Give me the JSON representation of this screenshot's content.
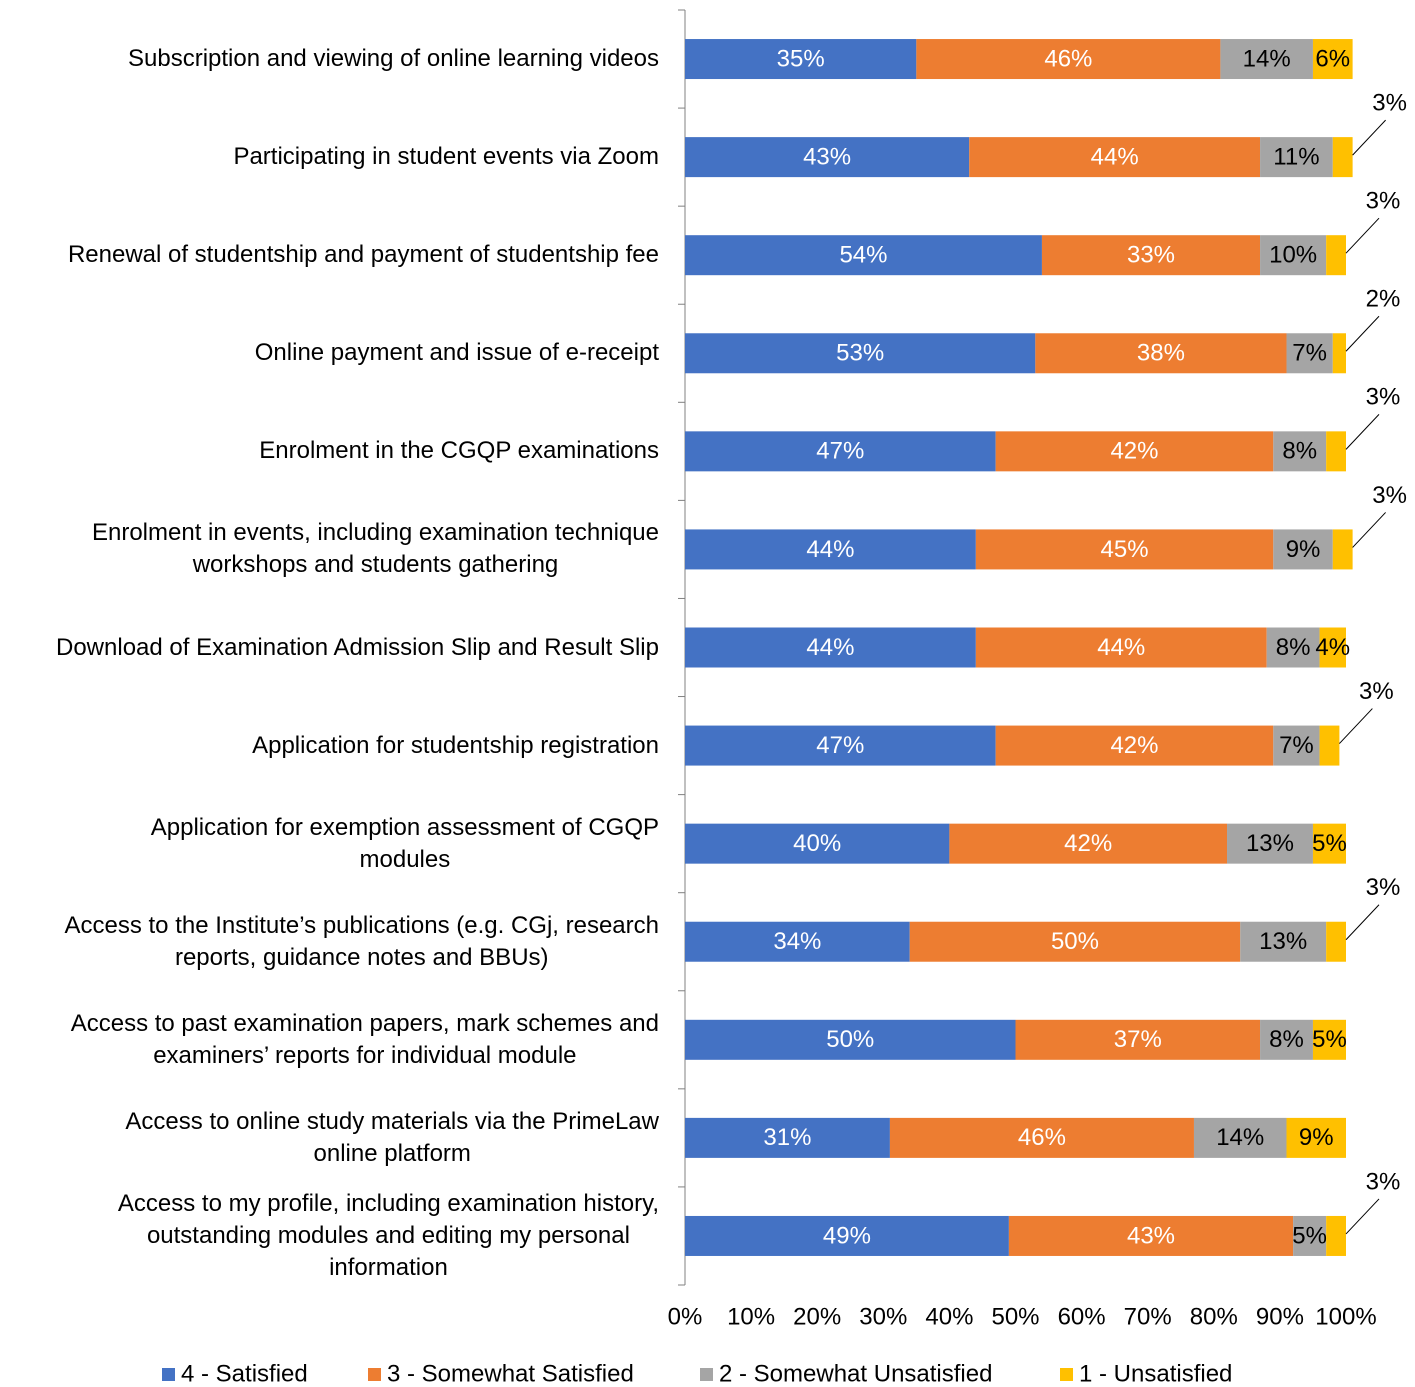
{
  "chart_data": {
    "type": "bar",
    "orientation": "horizontal",
    "stacked": true,
    "categories": [
      "Subscription and viewing of online learning videos",
      "Participating in student events via Zoom",
      "Renewal of studentship and payment of studentship fee",
      "Online payment and issue of e-receipt",
      "Enrolment in the CGQP examinations",
      "Enrolment in events, including examination technique\nworkshops and students gathering",
      "Download of Examination Admission Slip and Result Slip",
      "Application for studentship registration",
      "Application for exemption assessment of CGQP\nmodules",
      "Access to the Institute’s publications (e.g. CGj, research\nreports, guidance notes and BBUs)",
      "Access to past examination papers, mark schemes and\nexaminers’ reports for individual module",
      "Access to online study materials via the PrimeLaw\nonline platform",
      "Access to my profile, including examination history,\noutstanding modules and editing my personal\ninformation"
    ],
    "series": [
      {
        "name": "4 - Satisfied",
        "color": "#4472c4",
        "label_color": "#ffffff",
        "values": [
          35,
          43,
          54,
          53,
          47,
          44,
          44,
          47,
          40,
          34,
          50,
          31,
          49
        ],
        "value_labels": [
          "35%",
          "43%",
          "54%",
          "53%",
          "47%",
          "44%",
          "44%",
          "47%",
          "40%",
          "34%",
          "50%",
          "31%",
          "49%"
        ]
      },
      {
        "name": "3 - Somewhat Satisfied",
        "color": "#ed7d31",
        "label_color": "#ffffff",
        "values": [
          46,
          44,
          33,
          38,
          42,
          45,
          44,
          42,
          42,
          50,
          37,
          46,
          43
        ],
        "value_labels": [
          "46%",
          "44%",
          "33%",
          "38%",
          "42%",
          "45%",
          "44%",
          "42%",
          "42%",
          "50%",
          "37%",
          "46%",
          "43%"
        ]
      },
      {
        "name": "2 - Somewhat Unsatisfied",
        "color": "#a5a5a5",
        "label_color": "#000000",
        "values": [
          14,
          11,
          10,
          7,
          8,
          9,
          8,
          7,
          13,
          13,
          8,
          14,
          5
        ],
        "value_labels": [
          "14%",
          "11%",
          "10%",
          "7%",
          "8%",
          "9%",
          "8%",
          "7%",
          "13%",
          "13%",
          "8%",
          "14%",
          "5%"
        ]
      },
      {
        "name": "1 - Unsatisfied",
        "color": "#ffc000",
        "label_color": "#000000",
        "values": [
          6,
          3,
          3,
          2,
          3,
          3,
          4,
          3,
          5,
          3,
          5,
          9,
          3
        ],
        "value_labels": [
          "6%",
          "3%",
          "3%",
          "2%",
          "3%",
          "3%",
          "4%",
          "3%",
          "5%",
          "3%",
          "5%",
          "9%",
          "3%"
        ]
      }
    ],
    "xlim": [
      0,
      100
    ],
    "xticks": [
      {
        "value": 0,
        "label": "0%"
      },
      {
        "value": 10,
        "label": "10%"
      },
      {
        "value": 20,
        "label": "20%"
      },
      {
        "value": 30,
        "label": "30%"
      },
      {
        "value": 40,
        "label": "40%"
      },
      {
        "value": 50,
        "label": "50%"
      },
      {
        "value": 60,
        "label": "60%"
      },
      {
        "value": 70,
        "label": "70%"
      },
      {
        "value": 80,
        "label": "80%"
      },
      {
        "value": 90,
        "label": "90%"
      },
      {
        "value": 100,
        "label": "100%"
      }
    ],
    "legend": "bottom"
  }
}
